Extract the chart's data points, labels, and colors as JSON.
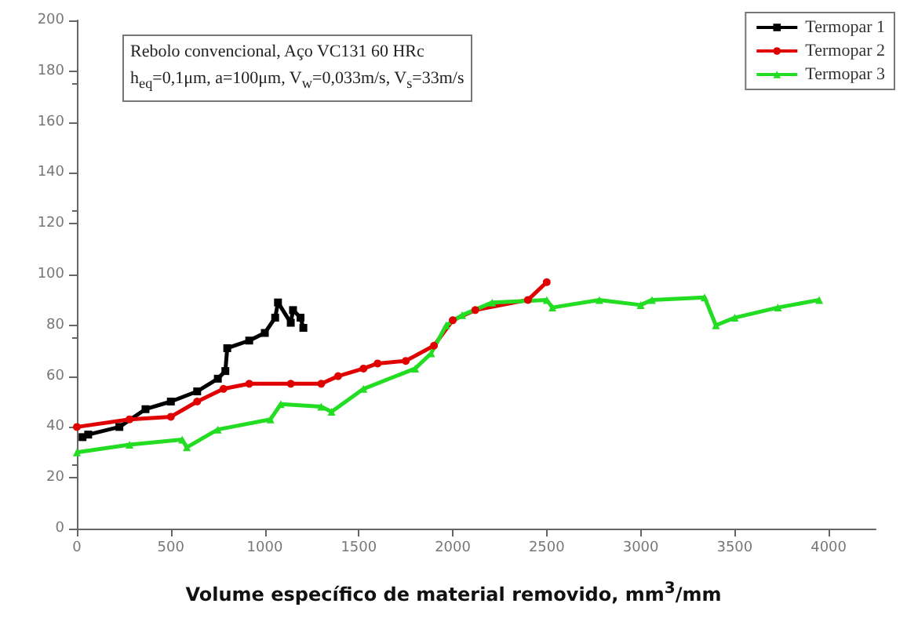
{
  "chart_data": {
    "type": "line",
    "xlabel": "Volume específico de material removido, mm$^{3}$/mm",
    "annotations": [
      "Rebolo convencional, Aço VC131 60 HRc",
      "h$_{eq}$=0,1μm, a=100μm, V$_{w}$=0,033m/s, V$_{s}$=33m/s"
    ],
    "xlim": [
      0,
      4250
    ],
    "xticks": [
      0,
      500,
      1000,
      1500,
      2000,
      2500,
      3000,
      3500,
      4000
    ],
    "ylim": [
      0,
      200
    ],
    "yticks": [
      0,
      20,
      40,
      60,
      80,
      100,
      120,
      140,
      160,
      180,
      200
    ],
    "grid": false,
    "legend": "top right",
    "line_style": "solid",
    "series": [
      {
        "name": "Termopar 1",
        "color": "#000000",
        "marker": "square",
        "x": [
          30,
          60,
          226,
          365,
          500,
          640,
          750,
          790,
          800,
          917,
          1000,
          1055,
          1070,
          1138,
          1150,
          1190,
          1205
        ],
        "values": [
          36,
          37,
          40,
          47,
          50,
          54,
          59,
          62,
          71,
          74,
          77,
          83,
          89,
          81,
          86,
          83,
          79
        ]
      },
      {
        "name": "Termopar 2",
        "color": "#e00000",
        "marker": "circle",
        "x": [
          0,
          280,
          500,
          640,
          780,
          917,
          1138,
          1300,
          1390,
          1525,
          1600,
          1750,
          1900,
          2000,
          2120,
          2400,
          2500
        ],
        "values": [
          40,
          43,
          44,
          50,
          55,
          57,
          57,
          57,
          60,
          63,
          65,
          66,
          72,
          82,
          86,
          90,
          97
        ]
      },
      {
        "name": "Termopar 3",
        "color": "#22dd22",
        "marker": "triangle",
        "x": [
          0,
          280,
          560,
          585,
          750,
          1030,
          1085,
          1300,
          1355,
          1525,
          1800,
          1885,
          1965,
          2050,
          2210,
          2500,
          2530,
          2780,
          3000,
          3060,
          3340,
          3400,
          3500,
          3730,
          3950
        ],
        "values": [
          30,
          33,
          35,
          32,
          39,
          43,
          49,
          48,
          46,
          55,
          63,
          69,
          80,
          84,
          89,
          90,
          87,
          90,
          88,
          90,
          91,
          80,
          83,
          87,
          90
        ]
      }
    ]
  }
}
